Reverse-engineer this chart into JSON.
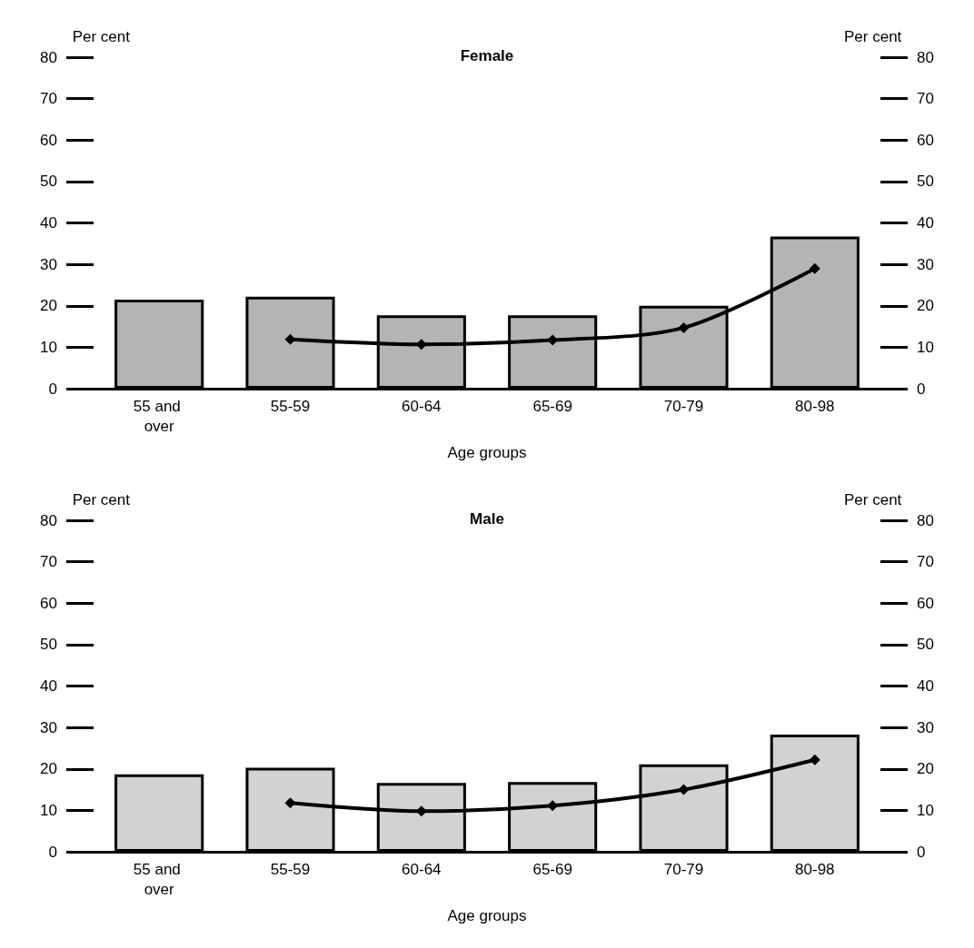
{
  "chart_data": [
    {
      "type": "bar",
      "title": "Female",
      "xlabel": "Age groups",
      "ylabel": "Per cent",
      "y2label": "Per cent",
      "categories": [
        "55 and over",
        "55-59",
        "60-64",
        "65-69",
        "70-79",
        "80-98"
      ],
      "series": [
        {
          "color": "#b4b4b4",
          "values": [
            21.5,
            22.2,
            17.7,
            17.7,
            20,
            36.7
          ]
        },
        {
          "type": "line",
          "color": "#000000",
          "marker": "diamond",
          "values": [
            null,
            11.9,
            10.7,
            11.7,
            14.7,
            29
          ]
        }
      ],
      "ylim": [
        0,
        80
      ],
      "yticks": [
        0,
        10,
        20,
        30,
        40,
        50,
        60,
        70,
        80
      ],
      "y2lim": [
        0,
        80
      ],
      "y2ticks": [
        0,
        10,
        20,
        30,
        40,
        50,
        60,
        70,
        80
      ],
      "grid": false
    },
    {
      "type": "bar",
      "title": "Male",
      "xlabel": "Age groups",
      "ylabel": "Per cent",
      "y2label": "Per cent",
      "categories": [
        "55 and over",
        "55-59",
        "60-64",
        "65-69",
        "70-79",
        "80-98"
      ],
      "series": [
        {
          "color": "#d2d2d2",
          "values": [
            18.7,
            20.3,
            16.6,
            16.8,
            21.1,
            28.3
          ]
        },
        {
          "type": "line",
          "color": "#000000",
          "marker": "diamond",
          "values": [
            null,
            11.8,
            9.8,
            11.1,
            15,
            22.2
          ]
        }
      ],
      "ylim": [
        0,
        80
      ],
      "yticks": [
        0,
        10,
        20,
        30,
        40,
        50,
        60,
        70,
        80
      ],
      "y2lim": [
        0,
        80
      ],
      "y2ticks": [
        0,
        10,
        20,
        30,
        40,
        50,
        60,
        70,
        80
      ],
      "grid": false
    }
  ]
}
